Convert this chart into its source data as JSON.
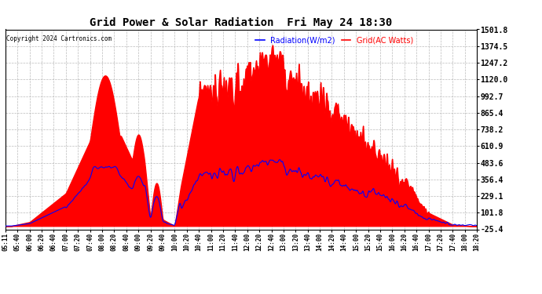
{
  "title": "Grid Power & Solar Radiation  Fri May 24 18:30",
  "copyright": "Copyright 2024 Cartronics.com",
  "legend_radiation": "Radiation(W/m2)",
  "legend_grid": "Grid(AC Watts)",
  "ylabel_right_values": [
    1501.8,
    1374.5,
    1247.2,
    1120.0,
    992.7,
    865.4,
    738.2,
    610.9,
    483.6,
    356.4,
    229.1,
    101.8,
    -25.4
  ],
  "ymin": -25.4,
  "ymax": 1501.8,
  "bg_color": "#ffffff",
  "plot_bg_color": "#ffffff",
  "grid_color": "#aaaaaa",
  "fill_color": "#ff0000",
  "line_color_radiation": "#0000ff",
  "line_color_grid": "#ff0000",
  "x_labels": [
    "05:11",
    "05:40",
    "06:00",
    "06:20",
    "06:40",
    "07:00",
    "07:20",
    "07:40",
    "08:00",
    "08:20",
    "08:40",
    "09:00",
    "09:20",
    "09:40",
    "10:00",
    "10:20",
    "10:40",
    "11:00",
    "11:20",
    "11:40",
    "12:00",
    "12:20",
    "12:40",
    "13:00",
    "13:20",
    "13:40",
    "14:00",
    "14:20",
    "14:40",
    "15:00",
    "15:20",
    "15:40",
    "16:00",
    "16:20",
    "16:40",
    "17:00",
    "17:20",
    "17:40",
    "18:00",
    "18:20"
  ]
}
